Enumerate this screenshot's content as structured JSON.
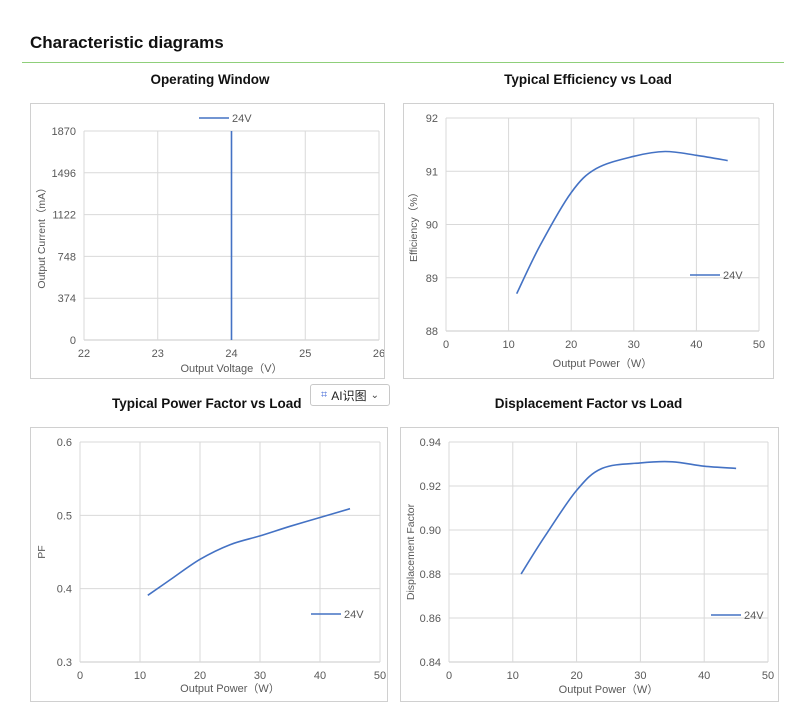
{
  "page": {
    "title": "Characteristic diagrams"
  },
  "ai_button": {
    "label": "AI识图",
    "icon": "ai-scan-icon",
    "chevron": "chevron-down-icon"
  },
  "colors": {
    "series": "#4472c4",
    "divider": "#8fcf7a",
    "grid": "#d9d9d9"
  },
  "chart_data": [
    {
      "type": "line",
      "title": "Operating Window",
      "xlabel": "Output Voltage（V）",
      "ylabel": "Output Current（mA）",
      "xlim": [
        22,
        26
      ],
      "ylim": [
        0,
        1870
      ],
      "x_ticks": [
        "22",
        "23",
        "24",
        "25",
        "26"
      ],
      "y_ticks": [
        "0",
        "374",
        "748",
        "1122",
        "1496",
        "1870"
      ],
      "legend_position": "top",
      "grid": true,
      "series": [
        {
          "name": "24V",
          "x": [
            24,
            24
          ],
          "y": [
            0,
            1870
          ]
        }
      ]
    },
    {
      "type": "line",
      "title": "Typical Efficiency vs Load",
      "xlabel": "Output Power（W）",
      "ylabel": "Efficiency（%）",
      "xlim": [
        0,
        50
      ],
      "ylim": [
        88,
        92
      ],
      "x_ticks": [
        "0",
        "10",
        "20",
        "30",
        "40",
        "50"
      ],
      "y_ticks": [
        "88",
        "89",
        "90",
        "91",
        "92"
      ],
      "legend_position": "right",
      "grid": true,
      "series": [
        {
          "name": "24V",
          "x": [
            11.3,
            15,
            20,
            24,
            30,
            35,
            40,
            45
          ],
          "y": [
            88.7,
            89.6,
            90.6,
            91.05,
            91.28,
            91.37,
            91.3,
            91.2
          ]
        }
      ]
    },
    {
      "type": "line",
      "title": "Typical Power Factor vs Load",
      "xlabel": "Output Power（W）",
      "ylabel": "PF",
      "xlim": [
        0,
        50
      ],
      "ylim": [
        0.3,
        0.6
      ],
      "x_ticks": [
        "0",
        "10",
        "20",
        "30",
        "40",
        "50"
      ],
      "y_ticks": [
        "0.3",
        "0.4",
        "0.5",
        "0.6"
      ],
      "legend_position": "right",
      "grid": true,
      "series": [
        {
          "name": "24V",
          "x": [
            11.3,
            15,
            20,
            25,
            30,
            35,
            40,
            45
          ],
          "y": [
            0.391,
            0.412,
            0.44,
            0.46,
            0.472,
            0.485,
            0.497,
            0.509
          ]
        }
      ]
    },
    {
      "type": "line",
      "title": "Displacement Factor vs Load",
      "xlabel": "Output Power（W）",
      "ylabel": "Displacement Factor",
      "xlim": [
        0,
        50
      ],
      "ylim": [
        0.84,
        0.94
      ],
      "x_ticks": [
        "0",
        "10",
        "20",
        "30",
        "40",
        "50"
      ],
      "y_ticks": [
        "0.84",
        "0.86",
        "0.88",
        "0.90",
        "0.92",
        "0.94"
      ],
      "legend_position": "right",
      "grid": true,
      "series": [
        {
          "name": "24V",
          "x": [
            11.3,
            15,
            20,
            24,
            30,
            35,
            40,
            45
          ],
          "y": [
            0.88,
            0.897,
            0.918,
            0.928,
            0.9305,
            0.931,
            0.929,
            0.928
          ]
        }
      ]
    }
  ]
}
